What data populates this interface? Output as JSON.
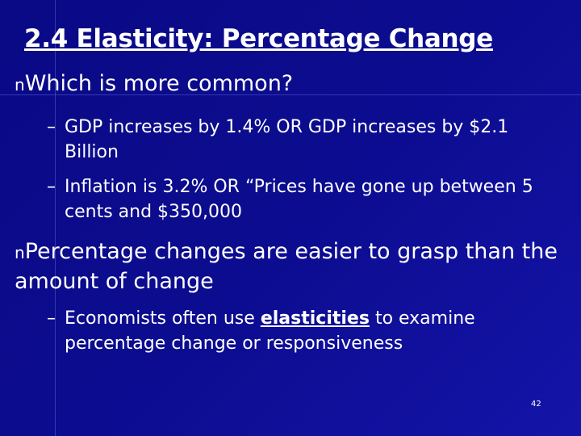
{
  "slide": {
    "title": "2.4 Elasticity: Percentage Change",
    "bullets": [
      {
        "marker": "n",
        "text": "Which is more common?",
        "subbullets": [
          {
            "marker": "–",
            "text": "GDP increases by 1.4% OR GDP increases by $2.1 Billion"
          },
          {
            "marker": "–",
            "text": "Inflation is 3.2% OR “Prices have gone up between 5 cents and $350,000"
          }
        ]
      },
      {
        "marker": "n",
        "text": "Percentage changes are easier to grasp than the amount of change",
        "subbullets": [
          {
            "marker": "–",
            "text_before": "Economists often use",
            "emphasis": "elasticities",
            "text_after": "to examine percentage change or responsiveness"
          }
        ]
      }
    ],
    "page_number": "42"
  }
}
